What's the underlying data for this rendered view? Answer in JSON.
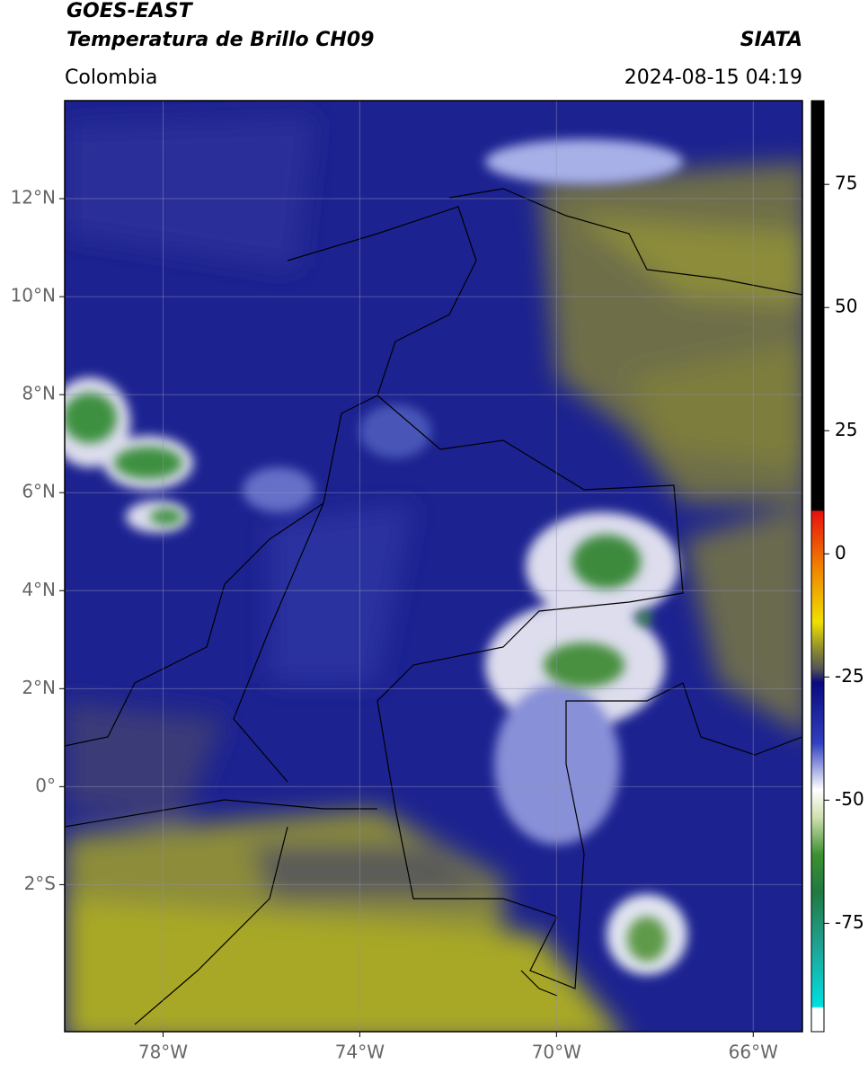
{
  "header": {
    "title": "GOES-EAST",
    "subtitle": "Temperatura de Brillo CH09",
    "source": "SIATA",
    "region": "Colombia",
    "timestamp": "2024-08-15 04:19"
  },
  "map": {
    "type": "map",
    "xlim": [
      -80,
      -65
    ],
    "ylim": [
      -5,
      14
    ],
    "xticks": [
      {
        "value": -78,
        "label": "78°W"
      },
      {
        "value": -74,
        "label": "74°W"
      },
      {
        "value": -70,
        "label": "70°W"
      },
      {
        "value": -66,
        "label": "66°W"
      }
    ],
    "yticks": [
      {
        "value": 12,
        "label": "12°N"
      },
      {
        "value": 10,
        "label": "10°N"
      },
      {
        "value": 8,
        "label": "8°N"
      },
      {
        "value": 6,
        "label": "6°N"
      },
      {
        "value": 4,
        "label": "4°N"
      },
      {
        "value": 2,
        "label": "2°N"
      },
      {
        "value": 0,
        "label": "0°"
      },
      {
        "value": -2,
        "label": "2°S"
      }
    ],
    "grid": true
  },
  "colorbar": {
    "lim": [
      -97,
      92
    ],
    "ticks": [
      75,
      50,
      25,
      0,
      -25,
      -50,
      -75
    ]
  }
}
